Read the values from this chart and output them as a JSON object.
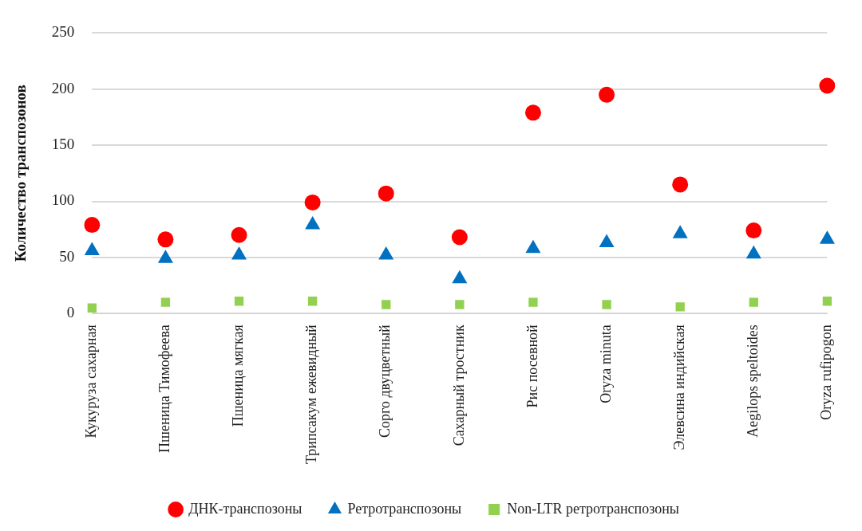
{
  "chart_data": {
    "type": "scatter",
    "ylabel": "Количество транспозонов",
    "categories": [
      "Кукуруза сахарная",
      "Пшеница Тимофеева",
      "Пшеница мягкая",
      "Трипсакум ежевидный",
      "Сорго двуцветный",
      "Сахарный тростник",
      "Рис посевной",
      "Oryza minuta",
      "Элевсина индийская",
      "Aegilops speltoides",
      "Oryza rufipogon"
    ],
    "series": [
      {
        "name": "ДНК-транспозоны",
        "color": "#ff0000",
        "marker": "circle",
        "values": [
          79,
          66,
          70,
          99,
          107,
          68,
          179,
          195,
          115,
          74,
          203
        ]
      },
      {
        "name": "Ретротранспозоны",
        "color": "#0070c0",
        "marker": "triangle",
        "values": [
          56,
          49,
          52,
          79,
          52,
          31,
          58,
          63,
          71,
          53,
          66
        ]
      },
      {
        "name": "Non-LTR ретротранспозоны",
        "color": "#92d050",
        "marker": "square",
        "values": [
          5,
          10,
          11,
          11,
          8,
          8,
          10,
          8,
          6,
          10,
          11
        ]
      }
    ],
    "ylim": [
      0,
      250
    ],
    "yticks": [
      0,
      50,
      100,
      150,
      200,
      250
    ],
    "grid": "y",
    "legend": "bottom"
  }
}
